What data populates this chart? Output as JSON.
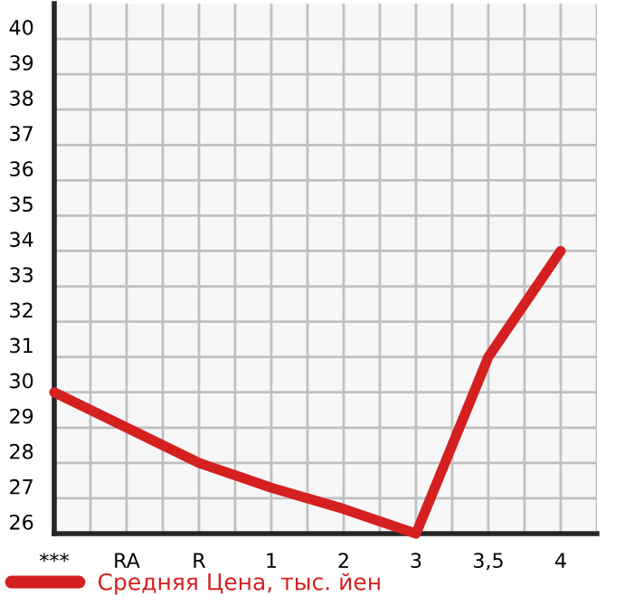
{
  "chart_data": {
    "type": "line",
    "categories": [
      "***",
      "RA",
      "R",
      "1",
      "2",
      "3",
      "3,5",
      "4"
    ],
    "series": [
      {
        "name": "Средняя Цена, тыс. йен",
        "color": "#d42020",
        "values": [
          30,
          29,
          28,
          27.3,
          26.7,
          26,
          31,
          34
        ]
      }
    ],
    "ylim": [
      26,
      41
    ],
    "yticks": [
      26,
      27,
      28,
      29,
      30,
      31,
      32,
      33,
      34,
      35,
      36,
      37,
      38,
      39,
      40
    ],
    "grid": true,
    "legend": "bottom",
    "marker": "none",
    "line_style": "solid"
  }
}
